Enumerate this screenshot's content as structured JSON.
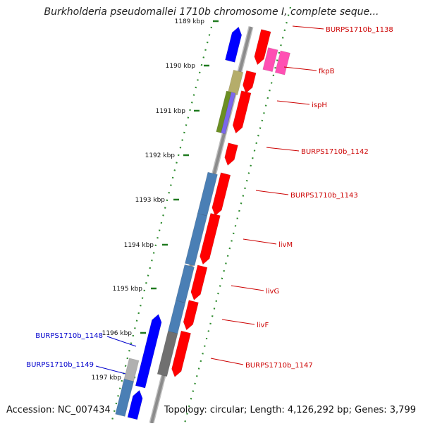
{
  "title": "Burkholderia pseudomallei 1710b chromosome I, complete seque...",
  "footer": {
    "accession": "Accession: NC_007434",
    "summary": "Topology: circular; Length: 4,126,292 bp; Genes: 3,799"
  },
  "colors": {
    "backbone": "#8c8c8c",
    "tick": "#1f7a1f",
    "dots": "#2e8b2e",
    "gene_forward": "#ff0000",
    "gene_reverse": "#0000ff",
    "gene_label_forward": "#cc0000",
    "gene_label_reverse": "#0000cc",
    "cds_steelblue": "#4a7fb5",
    "cds_grey": "#707070",
    "cds_olive": "#b5ad6a",
    "cds_green": "#6b8e23",
    "cds_slate": "#7b68ee",
    "cds_pink": "#ff4fb3"
  },
  "ticks": [
    "1189 kbp",
    "1190 kbp",
    "1191 kbp",
    "1192 kbp",
    "1193 kbp",
    "1194 kbp",
    "1195 kbp",
    "1196 kbp",
    "1197 kbp"
  ],
  "gene_labels": [
    {
      "text": "BURPS1710b_1138",
      "strand": "forward"
    },
    {
      "text": "fkpB",
      "strand": "forward"
    },
    {
      "text": "ispH",
      "strand": "forward"
    },
    {
      "text": "BURPS1710b_1142",
      "strand": "forward"
    },
    {
      "text": "BURPS1710b_1143",
      "strand": "forward"
    },
    {
      "text": "livM",
      "strand": "forward"
    },
    {
      "text": "livG",
      "strand": "forward"
    },
    {
      "text": "livF",
      "strand": "forward"
    },
    {
      "text": "BURPS1710b_1147",
      "strand": "forward"
    },
    {
      "text": "BURPS1710b_1148",
      "strand": "reverse"
    },
    {
      "text": "BURPS1710b_1149",
      "strand": "reverse"
    }
  ]
}
